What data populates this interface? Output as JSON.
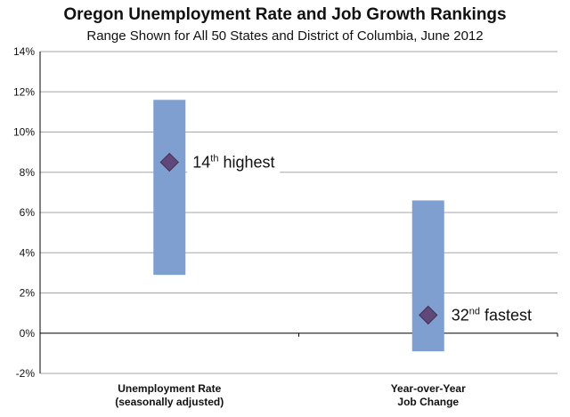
{
  "chart_data": {
    "type": "range",
    "title": "Oregon Unemployment Rate and Job Growth Rankings",
    "subtitle": "Range Shown for All 50 States and District of Columbia, June 2012",
    "ylim": [
      -2,
      14
    ],
    "yticks": [
      -2,
      0,
      2,
      4,
      6,
      8,
      10,
      12,
      14
    ],
    "ytick_labels": [
      "-2%",
      "0%",
      "2%",
      "4%",
      "6%",
      "8%",
      "10%",
      "12%",
      "14%"
    ],
    "grid": true,
    "categories": [
      {
        "line1": "Unemployment Rate",
        "line2": "(seasonally adjusted)"
      },
      {
        "line1": "Year-over-Year",
        "line2": "Job Change"
      }
    ],
    "ranges": [
      {
        "low": 2.9,
        "high": 11.6
      },
      {
        "low": -0.9,
        "high": 6.6
      }
    ],
    "points": [
      8.5,
      0.9
    ],
    "annotations": [
      {
        "rank": "14",
        "suffix": "th",
        "text": " highest"
      },
      {
        "rank": "32",
        "suffix": "nd",
        "text": " fastest"
      }
    ],
    "colors": {
      "bar": "#7F9FD0",
      "marker": "#60497A",
      "marker_stroke": "#3F3151",
      "grid": "#a6a6a6",
      "axis": "#000000"
    }
  }
}
